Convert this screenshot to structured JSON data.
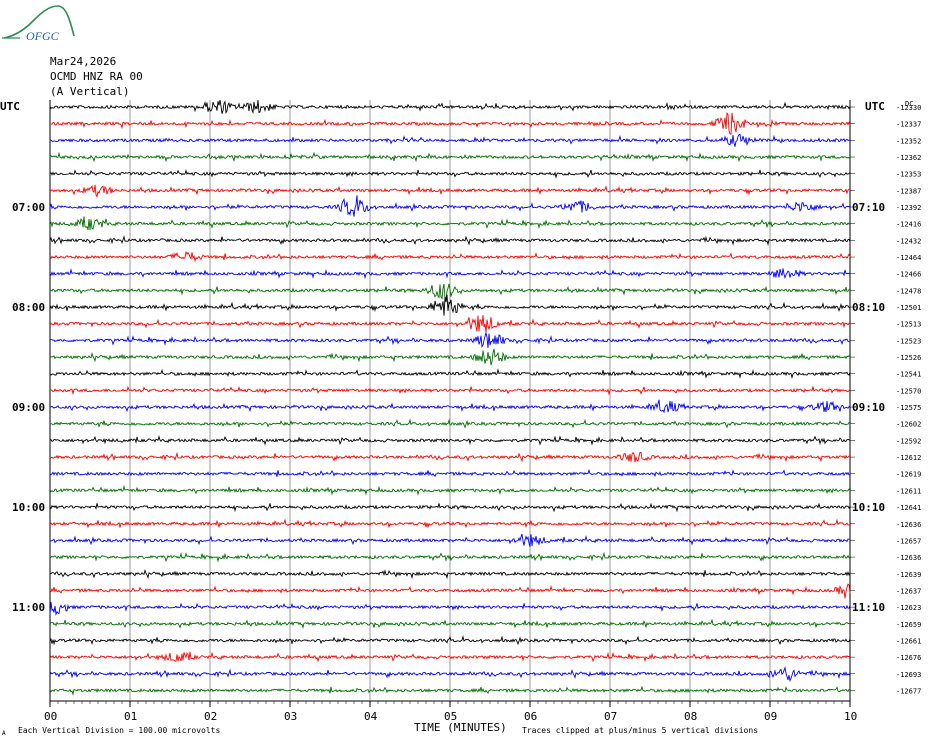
{
  "logo_text": "OFGC",
  "header": {
    "date": "Mar24,2026",
    "station": "OCMD HNZ RA 00",
    "component": "(A Vertical)"
  },
  "utc_label": "UTC",
  "dc_label": "DC",
  "footer": {
    "xlabel": "TIME (MINUTES)",
    "scale_note": "Each Vertical Division = 100.00 microvolts",
    "clip_note": "Traces clipped at plus/minus 5 vertical divisions",
    "corner_mark": "A"
  },
  "colors": [
    "#000000",
    "#ff0000",
    "#0000ff",
    "#007000"
  ],
  "chart_data": {
    "type": "line",
    "title": "",
    "xlabel": "TIME (MINUTES)",
    "xlim": [
      0,
      10
    ],
    "x_ticks": [
      "00",
      "01",
      "02",
      "03",
      "04",
      "05",
      "06",
      "07",
      "08",
      "09",
      "10"
    ],
    "left_time_labels": [
      {
        "row": 6,
        "text": "07:00"
      },
      {
        "row": 12,
        "text": "08:00"
      },
      {
        "row": 18,
        "text": "09:00"
      },
      {
        "row": 24,
        "text": "10:00"
      },
      {
        "row": 30,
        "text": "11:00"
      }
    ],
    "right_time_labels": [
      {
        "row": 6,
        "text": "07:10"
      },
      {
        "row": 12,
        "text": "08:10"
      },
      {
        "row": 18,
        "text": "09:10"
      },
      {
        "row": 24,
        "text": "10:10"
      },
      {
        "row": 30,
        "text": "11:10"
      }
    ],
    "dc_offsets": [
      -12330,
      -12337,
      -12352,
      -12362,
      -12353,
      -12387,
      -12392,
      -12416,
      -12432,
      -12464,
      -12466,
      -12478,
      -12501,
      -12513,
      -12523,
      -12526,
      -12541,
      -12570,
      -12575,
      -12602,
      -12592,
      -12612,
      -12619,
      -12611,
      -12641,
      -12636,
      -12657,
      -12636,
      -12639,
      -12637,
      -12623,
      -12659,
      -12661,
      -12676,
      -12693,
      -12677
    ],
    "bursts": [
      {
        "row": 0,
        "t": 2.1,
        "amp": 7
      },
      {
        "row": 0,
        "t": 2.6,
        "amp": 6
      },
      {
        "row": 1,
        "t": 8.5,
        "amp": 11
      },
      {
        "row": 2,
        "t": 8.6,
        "amp": 6
      },
      {
        "row": 5,
        "t": 0.6,
        "amp": 5
      },
      {
        "row": 6,
        "t": 3.8,
        "amp": 10
      },
      {
        "row": 6,
        "t": 6.6,
        "amp": 6
      },
      {
        "row": 6,
        "t": 9.4,
        "amp": 5
      },
      {
        "row": 7,
        "t": 0.5,
        "amp": 6
      },
      {
        "row": 9,
        "t": 1.7,
        "amp": 5
      },
      {
        "row": 10,
        "t": 9.2,
        "amp": 5
      },
      {
        "row": 11,
        "t": 4.9,
        "amp": 9
      },
      {
        "row": 12,
        "t": 4.95,
        "amp": 12
      },
      {
        "row": 13,
        "t": 5.4,
        "amp": 10
      },
      {
        "row": 14,
        "t": 5.5,
        "amp": 8
      },
      {
        "row": 15,
        "t": 5.5,
        "amp": 9
      },
      {
        "row": 18,
        "t": 7.7,
        "amp": 6
      },
      {
        "row": 18,
        "t": 9.7,
        "amp": 5
      },
      {
        "row": 21,
        "t": 7.3,
        "amp": 5
      },
      {
        "row": 26,
        "t": 6.0,
        "amp": 6
      },
      {
        "row": 29,
        "t": 10.0,
        "amp": 6
      },
      {
        "row": 30,
        "t": 0.05,
        "amp": 7
      },
      {
        "row": 33,
        "t": 1.6,
        "amp": 5
      },
      {
        "row": 34,
        "t": 9.2,
        "amp": 7
      }
    ]
  }
}
